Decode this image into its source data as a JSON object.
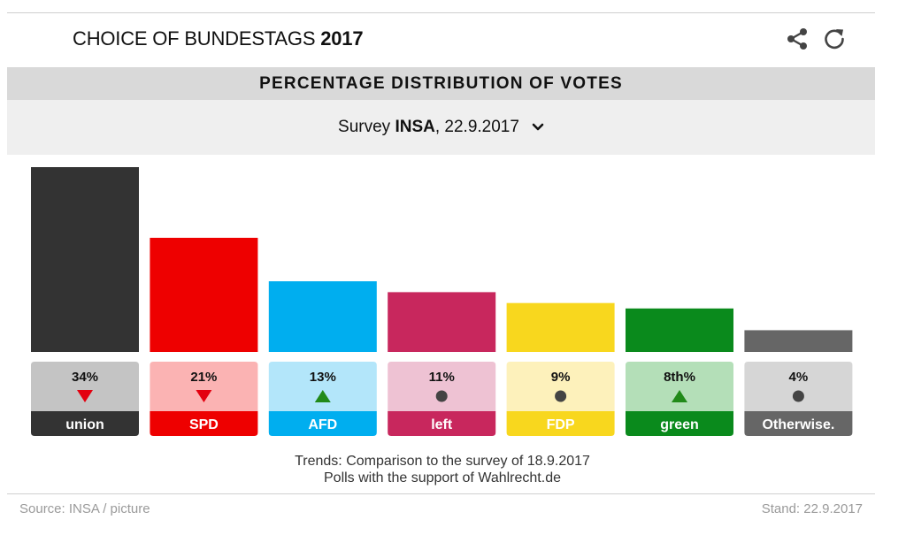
{
  "header": {
    "title_prefix": "CHOICE OF BUNDESTAGS",
    "title_year": "2017"
  },
  "icons": {
    "share": "share-icon",
    "refresh": "refresh-icon",
    "dropdown": "chevron-down-icon"
  },
  "section": {
    "label": "PERCENTAGE  DISTRIBUTION  OF  VOTES"
  },
  "survey": {
    "prefix": "Survey",
    "institute": "INSA",
    "date": " , 22.9.2017"
  },
  "chart_data": {
    "type": "bar",
    "title": "PERCENTAGE DISTRIBUTION OF VOTES",
    "categories": [
      "union",
      "SPD",
      "AFD",
      "left",
      "FDP",
      "green",
      "Otherwise."
    ],
    "values": [
      34,
      21,
      13,
      11,
      9,
      8,
      4
    ],
    "value_labels": [
      "34%",
      "21%",
      "13%",
      "11%",
      "9%",
      "8th%",
      "4%"
    ],
    "trends": [
      "down",
      "down",
      "up",
      "same",
      "same",
      "up",
      "same"
    ],
    "colors": [
      "#333333",
      "#ee0000",
      "#00aeef",
      "#c8275d",
      "#f8d71e",
      "#0a8a1c",
      "#666666"
    ],
    "box_colors": [
      "#c4c4c4",
      "#fbb3b3",
      "#b3e6fa",
      "#eec2d3",
      "#fdf1bb",
      "#b4dfb8",
      "#d6d6d6"
    ],
    "trend_colors": {
      "down": "#e3000f",
      "up": "#218a19",
      "same": "#444444"
    },
    "ylim": [
      0,
      34
    ],
    "grid": false,
    "legend": "none"
  },
  "trends_note": {
    "line1": "Trends: Comparison to the survey of 18.9.2017",
    "line2": "Polls with the support of Wahlrecht.de"
  },
  "footer": {
    "source": "Source:  INSA / picture",
    "stand": "Stand:  22.9.2017"
  }
}
